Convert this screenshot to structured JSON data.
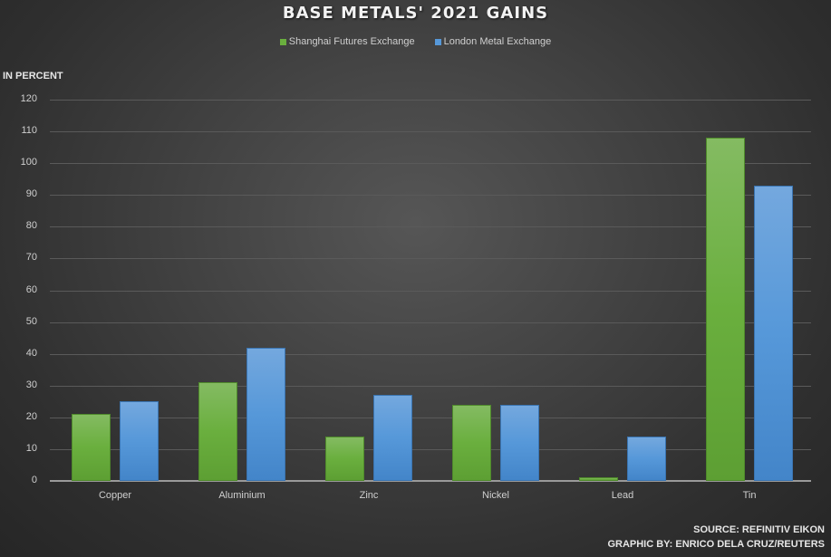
{
  "header": {
    "title": "BASE METALS' 2021 GAINS"
  },
  "legend": [
    {
      "label": "Shanghai Futures Exchange",
      "color": "#6aaf3e"
    },
    {
      "label": "London Metal Exchange",
      "color": "#5698d9"
    }
  ],
  "axis": {
    "unit_label": "IN PERCENT",
    "ticks": [
      "0",
      "10",
      "20",
      "30",
      "40",
      "50",
      "60",
      "70",
      "80",
      "90",
      "100",
      "110",
      "120"
    ]
  },
  "categories": [
    "Copper",
    "Aluminium",
    "Zinc",
    "Nickel",
    "Lead",
    "Tin"
  ],
  "footer": {
    "source": "SOURCE: REFINITIV EIKON",
    "graphic_by": "GRAPHIC BY: ENRICO DELA CRUZ/REUTERS"
  },
  "chart_data": {
    "type": "bar",
    "title": "BASE METALS' 2021 GAINS",
    "xlabel": "",
    "ylabel": "IN PERCENT",
    "categories": [
      "Copper",
      "Aluminium",
      "Zinc",
      "Nickel",
      "Lead",
      "Tin"
    ],
    "series": [
      {
        "name": "Shanghai Futures Exchange",
        "color": "#6aaf3e",
        "values": [
          21,
          31,
          14,
          24,
          1,
          108
        ]
      },
      {
        "name": "London Metal Exchange",
        "color": "#5698d9",
        "values": [
          25,
          42,
          27,
          24,
          14,
          93
        ]
      }
    ],
    "ylim": [
      0,
      120
    ],
    "yticks": [
      0,
      10,
      20,
      30,
      40,
      50,
      60,
      70,
      80,
      90,
      100,
      110,
      120
    ],
    "grid": true,
    "legend_position": "top",
    "annotations": [
      "SOURCE: REFINITIV EIKON",
      "GRAPHIC BY: ENRICO DELA CRUZ/REUTERS"
    ]
  }
}
